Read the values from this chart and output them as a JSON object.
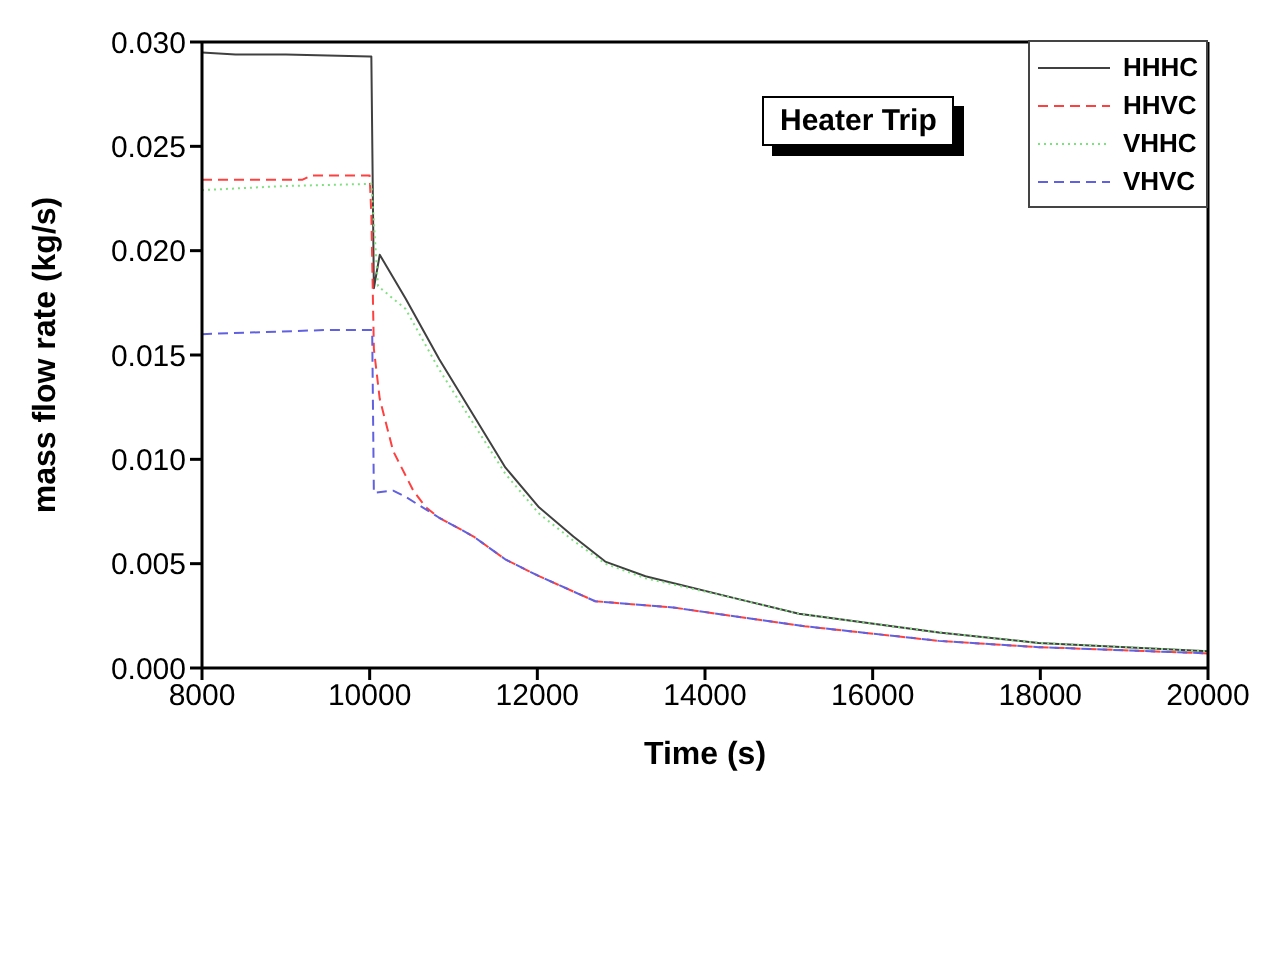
{
  "chart_data": {
    "type": "line",
    "xlabel": "Time (s)",
    "ylabel": "mass flow rate (kg/s)",
    "annotations": [
      "Heater Trip"
    ],
    "xlim": [
      8000,
      20000
    ],
    "xticks": [
      8000,
      10000,
      12000,
      14000,
      16000,
      18000,
      20000
    ],
    "ylim": [
      0,
      0.03
    ],
    "yticks": [
      {
        "value": 0,
        "label": "0.000"
      },
      {
        "value": 0.005,
        "label": "0.005"
      },
      {
        "value": 0.01,
        "label": "0.010"
      },
      {
        "value": 0.015,
        "label": "0.015"
      },
      {
        "value": 0.02,
        "label": "0.020"
      },
      {
        "value": 0.025,
        "label": "0.025"
      },
      {
        "value": 0.03,
        "label": "0.030"
      }
    ],
    "grid": false,
    "legend": "top right",
    "marker": "none",
    "series": [
      {
        "name": "HHHC",
        "color": "#404040",
        "line_style": "solid",
        "x": [
          8000,
          8400,
          9000,
          10000,
          10020,
          10050,
          10120,
          10430,
          10830,
          11240,
          11620,
          12020,
          12430,
          12810,
          13290,
          14400,
          15120,
          16790,
          17980,
          20000
        ],
        "values": [
          0.0295,
          0.0294,
          0.0294,
          0.0293,
          0.0293,
          0.0182,
          0.0198,
          0.0177,
          0.0148,
          0.0121,
          0.0096,
          0.0077,
          0.0063,
          0.0051,
          0.0044,
          0.0033,
          0.0026,
          0.0017,
          0.0012,
          0.0008
        ]
      },
      {
        "name": "HHVC",
        "color": "#ff4040",
        "line_style": "dashed",
        "x": [
          8000,
          9200,
          9300,
          10000,
          10020,
          10050,
          10120,
          10280,
          10520,
          10670,
          10830,
          11240,
          11620,
          12020,
          12690,
          13620,
          15190,
          16790,
          17980,
          20000
        ],
        "values": [
          0.0234,
          0.0234,
          0.0236,
          0.0236,
          0.0217,
          0.0153,
          0.0129,
          0.0104,
          0.0085,
          0.0077,
          0.0072,
          0.0063,
          0.0052,
          0.0044,
          0.0032,
          0.0029,
          0.002,
          0.0013,
          0.001,
          0.0007
        ]
      },
      {
        "name": "VHHC",
        "color": "#80e080",
        "line_style": "dotted",
        "x": [
          8000,
          9000,
          10000,
          10020,
          10100,
          10430,
          10830,
          11240,
          11620,
          12020,
          12430,
          12810,
          13290,
          14400,
          15120,
          16790,
          17980,
          20000
        ],
        "values": [
          0.0229,
          0.0231,
          0.0232,
          0.0232,
          0.0183,
          0.0172,
          0.0143,
          0.0117,
          0.0093,
          0.0074,
          0.0061,
          0.005,
          0.0043,
          0.0033,
          0.0026,
          0.0017,
          0.0012,
          0.0008
        ]
      },
      {
        "name": "VHVC",
        "color": "#6060e0",
        "line_style": "dashed",
        "x": [
          8000,
          9500,
          10000,
          10030,
          10050,
          10280,
          10430,
          10830,
          11240,
          11620,
          12020,
          12690,
          13620,
          15190,
          16790,
          17980,
          20000
        ],
        "values": [
          0.016,
          0.0162,
          0.0162,
          0.0162,
          0.0084,
          0.0085,
          0.0082,
          0.0072,
          0.0063,
          0.0052,
          0.0044,
          0.0032,
          0.0029,
          0.002,
          0.0013,
          0.001,
          0.0007
        ]
      }
    ]
  }
}
